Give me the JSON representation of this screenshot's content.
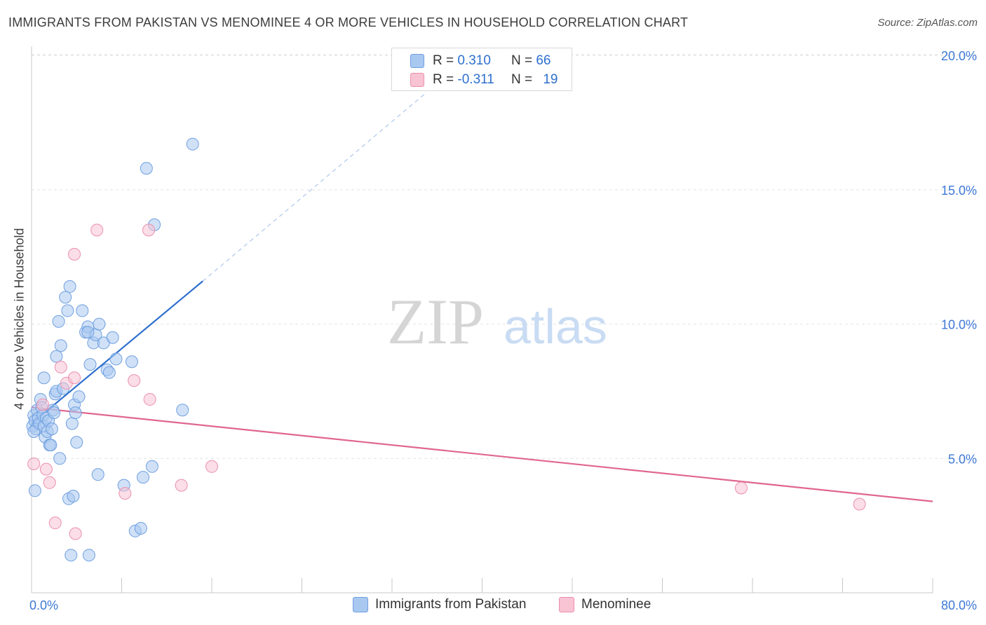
{
  "title": "IMMIGRANTS FROM PAKISTAN VS MENOMINEE 4 OR MORE VEHICLES IN HOUSEHOLD CORRELATION CHART",
  "source": "Source: ZipAtlas.com",
  "watermark": {
    "zip": "ZIP",
    "atlas": "atlas"
  },
  "legend": {
    "rows": [
      {
        "r_label": "R =",
        "r_value": "0.310",
        "n_label": "N =",
        "n_value": "66"
      },
      {
        "r_label": "R =",
        "r_value": "-0.311",
        "n_label": "N =",
        "n_value": "19"
      }
    ]
  },
  "colors": {
    "pakistan_fill": "#a9c8f0",
    "pakistan_stroke": "#6f9fe0",
    "pakistan_line": "#2e6fcf",
    "menominee_fill": "#f8c3d3",
    "menominee_stroke": "#eb8fae",
    "menominee_line": "#e0668f",
    "tick_text": "#3d78d6",
    "grid": "#e3e3e3"
  },
  "chart_data": {
    "type": "scatter",
    "xlabel": "",
    "ylabel": "4 or more Vehicles in Household",
    "xlim": [
      0,
      80
    ],
    "ylim": [
      0,
      20.5
    ],
    "x_tick_labels": [
      "0.0%",
      "80.0%"
    ],
    "y_ticks": [
      5,
      10,
      15,
      20
    ],
    "y_tick_labels": [
      "5.0%",
      "10.0%",
      "15.0%",
      "20.0%"
    ],
    "grid": true,
    "legend_position": "top-center",
    "series": [
      {
        "name": "Immigrants from Pakistan",
        "r": 0.31,
        "n": 66,
        "trend": {
          "x0": 0.0,
          "y0": 6.3,
          "x1": 15.2,
          "y1": 11.6,
          "dashed_to_x": 35.0,
          "dashed_to_y": 18.6
        },
        "points": [
          [
            0.1,
            6.2
          ],
          [
            0.2,
            6.6
          ],
          [
            0.3,
            6.4
          ],
          [
            0.4,
            6.1
          ],
          [
            0.5,
            6.8
          ],
          [
            0.6,
            6.5
          ],
          [
            0.3,
            3.8
          ],
          [
            0.2,
            6.0
          ],
          [
            0.7,
            6.3
          ],
          [
            0.8,
            7.2
          ],
          [
            0.9,
            6.9
          ],
          [
            1.0,
            6.6
          ],
          [
            1.1,
            6.2
          ],
          [
            1.2,
            5.8
          ],
          [
            1.3,
            6.5
          ],
          [
            1.4,
            6.0
          ],
          [
            1.5,
            6.4
          ],
          [
            1.6,
            5.5
          ],
          [
            1.7,
            5.5
          ],
          [
            1.8,
            6.1
          ],
          [
            1.9,
            6.8
          ],
          [
            2.0,
            6.7
          ],
          [
            2.1,
            7.4
          ],
          [
            2.2,
            8.8
          ],
          [
            1.1,
            8.0
          ],
          [
            2.4,
            10.1
          ],
          [
            2.5,
            5.0
          ],
          [
            2.6,
            9.2
          ],
          [
            2.2,
            7.5
          ],
          [
            2.8,
            7.6
          ],
          [
            3.0,
            11.0
          ],
          [
            3.2,
            10.5
          ],
          [
            3.4,
            11.4
          ],
          [
            3.3,
            3.5
          ],
          [
            3.6,
            6.3
          ],
          [
            3.8,
            7.0
          ],
          [
            4.0,
            5.6
          ],
          [
            4.2,
            7.3
          ],
          [
            3.9,
            6.7
          ],
          [
            4.5,
            10.5
          ],
          [
            4.8,
            9.7
          ],
          [
            5.0,
            9.9
          ],
          [
            5.2,
            8.5
          ],
          [
            5.5,
            9.3
          ],
          [
            5.7,
            9.6
          ],
          [
            5.0,
            9.7
          ],
          [
            6.0,
            10.0
          ],
          [
            5.9,
            4.4
          ],
          [
            6.4,
            9.3
          ],
          [
            6.7,
            8.3
          ],
          [
            6.9,
            8.2
          ],
          [
            7.2,
            9.5
          ],
          [
            7.5,
            8.7
          ],
          [
            8.2,
            4.0
          ],
          [
            8.9,
            8.6
          ],
          [
            9.2,
            2.3
          ],
          [
            9.7,
            2.4
          ],
          [
            9.9,
            4.3
          ],
          [
            10.7,
            4.7
          ],
          [
            10.2,
            15.8
          ],
          [
            10.9,
            13.7
          ],
          [
            13.4,
            6.8
          ],
          [
            14.3,
            16.7
          ],
          [
            3.7,
            3.6
          ],
          [
            3.5,
            1.4
          ],
          [
            5.1,
            1.4
          ]
        ]
      },
      {
        "name": "Menominee",
        "r": -0.311,
        "n": 19,
        "trend": {
          "x0": 0.0,
          "y0": 6.9,
          "x1": 80.0,
          "y1": 3.4
        },
        "points": [
          [
            0.2,
            4.8
          ],
          [
            1.0,
            7.0
          ],
          [
            1.3,
            4.6
          ],
          [
            1.6,
            4.1
          ],
          [
            2.1,
            2.6
          ],
          [
            2.6,
            8.4
          ],
          [
            3.1,
            7.8
          ],
          [
            3.8,
            8.0
          ],
          [
            3.9,
            2.2
          ],
          [
            3.8,
            12.6
          ],
          [
            5.8,
            13.5
          ],
          [
            8.3,
            3.7
          ],
          [
            9.1,
            7.9
          ],
          [
            10.5,
            7.2
          ],
          [
            10.4,
            13.5
          ],
          [
            13.3,
            4.0
          ],
          [
            16.0,
            4.7
          ],
          [
            63.0,
            3.9
          ],
          [
            73.5,
            3.3
          ]
        ]
      }
    ]
  }
}
